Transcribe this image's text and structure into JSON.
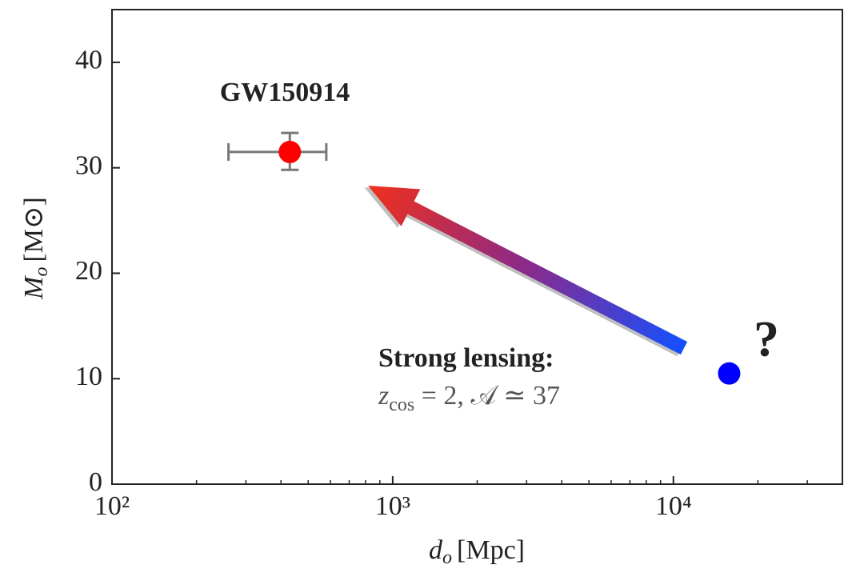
{
  "chart_data": {
    "type": "scatter",
    "xlabel_symbol": "d",
    "xlabel_subscript": "o",
    "xlabel_unit": "[Mpc]",
    "ylabel_symbol": "M",
    "ylabel_subscript": "o",
    "ylabel_unit": "[M⊙]",
    "xscale": "log",
    "xlim": [
      100,
      40000
    ],
    "ylim": [
      0,
      45
    ],
    "xticks": [
      {
        "value": 100,
        "label": "10²"
      },
      {
        "value": 1000,
        "label": "10³"
      },
      {
        "value": 10000,
        "label": "10⁴"
      }
    ],
    "xminorticks": [
      200,
      300,
      400,
      500,
      600,
      700,
      800,
      900,
      2000,
      3000,
      4000,
      5000,
      6000,
      7000,
      8000,
      9000,
      20000,
      30000
    ],
    "yticks": [
      0,
      10,
      20,
      30,
      40
    ],
    "series": [
      {
        "color": "#ff0000",
        "x": [
          430
        ],
        "values": [
          31.5
        ],
        "xerr_low": [
          170
        ],
        "xerr_high": [
          150
        ],
        "yerr_low": [
          1.7
        ],
        "yerr_high": [
          1.8
        ]
      },
      {
        "color": "#0000ff",
        "x": [
          15800
        ],
        "values": [
          10.5
        ]
      }
    ],
    "annotations": {
      "event": "GW150914",
      "lensing": "Strong lensing:",
      "formula_z": "z",
      "formula_sub": "cos",
      "formula_rest": " = 2, 𝒜 ≃ 37",
      "question": "?"
    }
  }
}
